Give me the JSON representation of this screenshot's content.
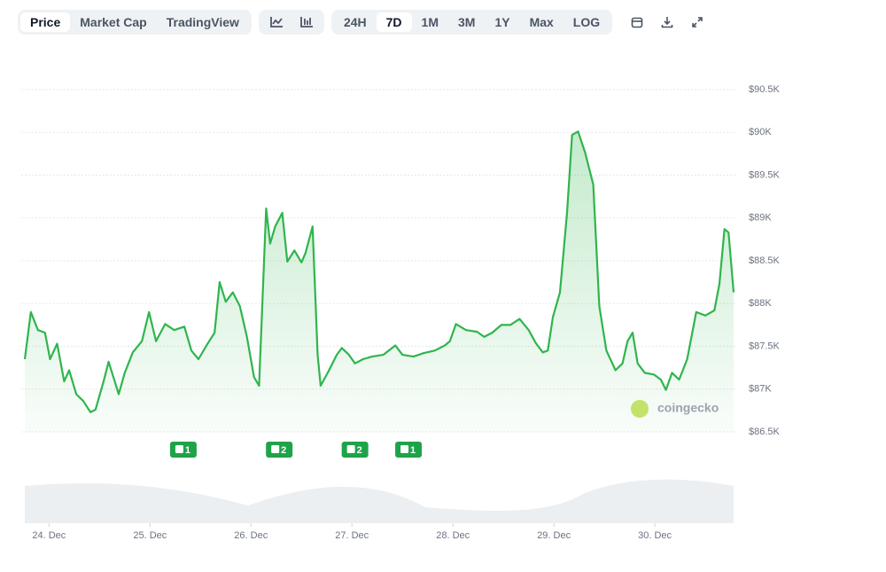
{
  "toolbar": {
    "tabs": [
      "Price",
      "Market Cap",
      "TradingView"
    ],
    "active_tab": 0,
    "ranges": [
      "24H",
      "7D",
      "1M",
      "3M",
      "1Y",
      "Max",
      "LOG"
    ],
    "active_range": 1
  },
  "chart_data": {
    "type": "line",
    "color": "#2fb54d",
    "watermark": "coingecko",
    "x": [
      -0.24,
      -0.18,
      -0.11,
      -0.04,
      0.01,
      0.08,
      0.15,
      0.2,
      0.27,
      0.34,
      0.41,
      0.46,
      0.54,
      0.59,
      0.69,
      0.75,
      0.83,
      0.92,
      0.99,
      1.06,
      1.15,
      1.24,
      1.34,
      1.41,
      1.48,
      1.57,
      1.64,
      1.69,
      1.75,
      1.82,
      1.89,
      1.96,
      2.03,
      2.08,
      2.11,
      2.15,
      2.19,
      2.24,
      2.31,
      2.36,
      2.43,
      2.5,
      2.54,
      2.61,
      2.66,
      2.69,
      2.76,
      2.85,
      2.9,
      2.97,
      3.03,
      3.11,
      3.2,
      3.31,
      3.43,
      3.5,
      3.61,
      3.71,
      3.82,
      3.92,
      3.97,
      4.03,
      4.13,
      4.24,
      4.31,
      4.39,
      4.48,
      4.57,
      4.66,
      4.75,
      4.82,
      4.89,
      4.94,
      4.99,
      5.06,
      5.13,
      5.18,
      5.24,
      5.31,
      5.39,
      5.45,
      5.52,
      5.61,
      5.68,
      5.73,
      5.78,
      5.83,
      5.9,
      5.99,
      6.06,
      6.11,
      6.17,
      6.24,
      6.32,
      6.41,
      6.5,
      6.59,
      6.64,
      6.69,
      6.73,
      6.78
    ],
    "values": [
      87350,
      87900,
      87690,
      87660,
      87350,
      87530,
      87090,
      87220,
      86940,
      86860,
      86730,
      86760,
      87090,
      87320,
      86940,
      87190,
      87430,
      87560,
      87900,
      87560,
      87760,
      87690,
      87730,
      87450,
      87350,
      87530,
      87660,
      88250,
      88020,
      88130,
      87970,
      87610,
      87140,
      87040,
      87920,
      89110,
      88700,
      88900,
      89060,
      88490,
      88620,
      88480,
      88590,
      88900,
      87400,
      87040,
      87190,
      87400,
      87480,
      87400,
      87300,
      87350,
      87380,
      87400,
      87510,
      87400,
      87380,
      87420,
      87450,
      87510,
      87560,
      87760,
      87690,
      87670,
      87610,
      87660,
      87750,
      87750,
      87820,
      87690,
      87540,
      87430,
      87450,
      87840,
      88130,
      89060,
      89970,
      90010,
      89760,
      89390,
      87970,
      87450,
      87220,
      87300,
      87560,
      87660,
      87300,
      87190,
      87170,
      87110,
      86990,
      87190,
      87110,
      87350,
      87900,
      87860,
      87920,
      88230,
      88870,
      88830,
      88130
    ],
    "xlim": [
      -0.24,
      6.78
    ],
    "xticks": [
      {
        "value": 0,
        "label": "24. Dec"
      },
      {
        "value": 1,
        "label": "25. Dec"
      },
      {
        "value": 2,
        "label": "26. Dec"
      },
      {
        "value": 3,
        "label": "27. Dec"
      },
      {
        "value": 4,
        "label": "28. Dec"
      },
      {
        "value": 5,
        "label": "29. Dec"
      },
      {
        "value": 6,
        "label": "30. Dec"
      }
    ],
    "ylim": [
      86500,
      90500
    ],
    "yticks": [
      {
        "value": 86500,
        "label": "$86.5K"
      },
      {
        "value": 87000,
        "label": "$87K"
      },
      {
        "value": 87500,
        "label": "$87.5K"
      },
      {
        "value": 88000,
        "label": "$88K"
      },
      {
        "value": 88500,
        "label": "$88.5K"
      },
      {
        "value": 89000,
        "label": "$89K"
      },
      {
        "value": 89500,
        "label": "$89.5K"
      },
      {
        "value": 90000,
        "label": "$90K"
      },
      {
        "value": 90500,
        "label": "$90.5K"
      }
    ],
    "grid": true,
    "events": [
      {
        "x": 1.33,
        "count": 1
      },
      {
        "x": 2.28,
        "count": 2
      },
      {
        "x": 3.03,
        "count": 2
      },
      {
        "x": 3.56,
        "count": 1
      }
    ]
  }
}
